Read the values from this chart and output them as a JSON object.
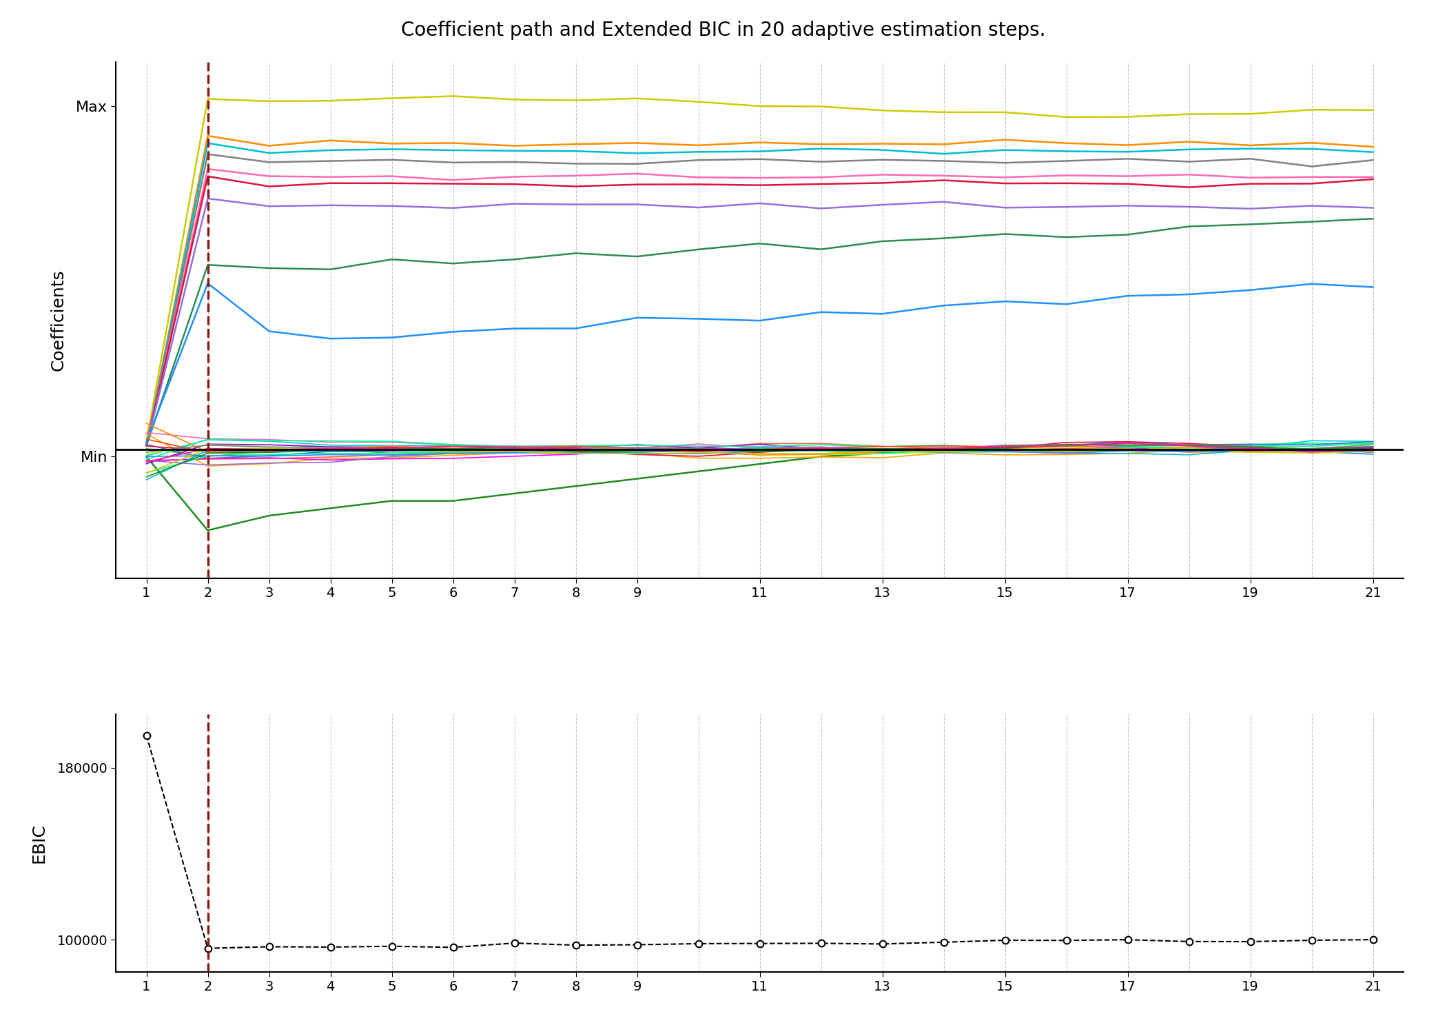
{
  "title": "Coefficient path and Extended BIC in 20 adaptive estimation steps.",
  "x_ticks": [
    1,
    2,
    3,
    4,
    5,
    6,
    7,
    8,
    9,
    11,
    13,
    15,
    17,
    19,
    21
  ],
  "x_values": [
    1,
    2,
    3,
    4,
    5,
    6,
    7,
    8,
    9,
    10,
    11,
    12,
    13,
    14,
    15,
    16,
    17,
    18,
    19,
    20,
    21
  ],
  "vline_x": 2,
  "coeff_ylabel": "Coefficients",
  "ebic_ylabel": "EBIC",
  "coeff_yticks_labels": [
    "Min",
    "Max"
  ],
  "ebic_yticks": [
    100000,
    180000
  ],
  "background_color": "#ffffff",
  "ax_background": "#f0f0f0",
  "grid_color": "#aaaaaa",
  "vline_color": "#8b1a1a",
  "min_line_color": "#000000",
  "ebic_line_color": "#000000",
  "num_steps": 21
}
